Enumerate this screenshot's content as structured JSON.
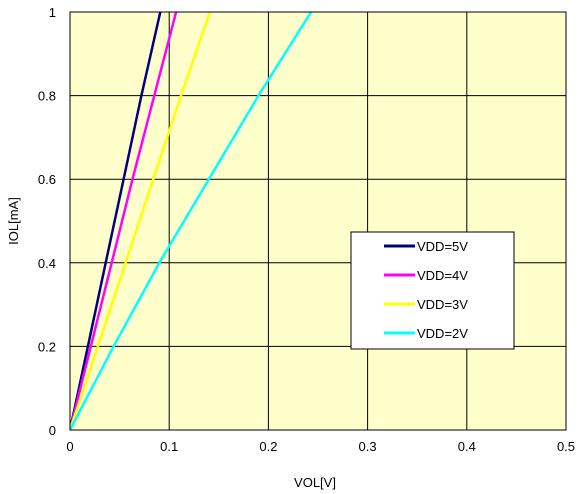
{
  "chart_data": {
    "type": "line",
    "xlabel": "VOL[V]",
    "ylabel": "IOL[mA]",
    "xlim": [
      0,
      0.5
    ],
    "ylim": [
      0,
      1
    ],
    "xticks": [
      0,
      0.1,
      0.2,
      0.3,
      0.4,
      0.5
    ],
    "yticks": [
      0,
      0.2,
      0.4,
      0.6,
      0.8,
      1
    ],
    "xtick_labels": [
      "0",
      "0.1",
      "0.2",
      "0.3",
      "0.4",
      "0.5"
    ],
    "ytick_labels": [
      "0",
      "0.2",
      "0.4",
      "0.6",
      "0.8",
      "1"
    ],
    "grid": true,
    "plot_background": "#FFFFCC",
    "legend_position": "right-center",
    "series": [
      {
        "name": "VDD=5V",
        "color": "#000080",
        "x": [
          0,
          0.018,
          0.036,
          0.054,
          0.072,
          0.091
        ],
        "y": [
          0,
          0.2,
          0.4,
          0.6,
          0.8,
          1.0
        ]
      },
      {
        "name": "VDD=4V",
        "color": "#FF00FF",
        "x": [
          0,
          0.021,
          0.042,
          0.063,
          0.085,
          0.107
        ],
        "y": [
          0,
          0.2,
          0.4,
          0.6,
          0.8,
          1.0
        ]
      },
      {
        "name": "VDD=3V",
        "color": "#FFFF00",
        "x": [
          0,
          0.028,
          0.056,
          0.084,
          0.112,
          0.141
        ],
        "y": [
          0,
          0.2,
          0.4,
          0.6,
          0.8,
          1.0
        ]
      },
      {
        "name": "VDD=2V",
        "color": "#00FFFF",
        "x": [
          0,
          0.044,
          0.09,
          0.14,
          0.19,
          0.243
        ],
        "y": [
          0,
          0.2,
          0.4,
          0.6,
          0.8,
          1.0
        ]
      }
    ]
  }
}
